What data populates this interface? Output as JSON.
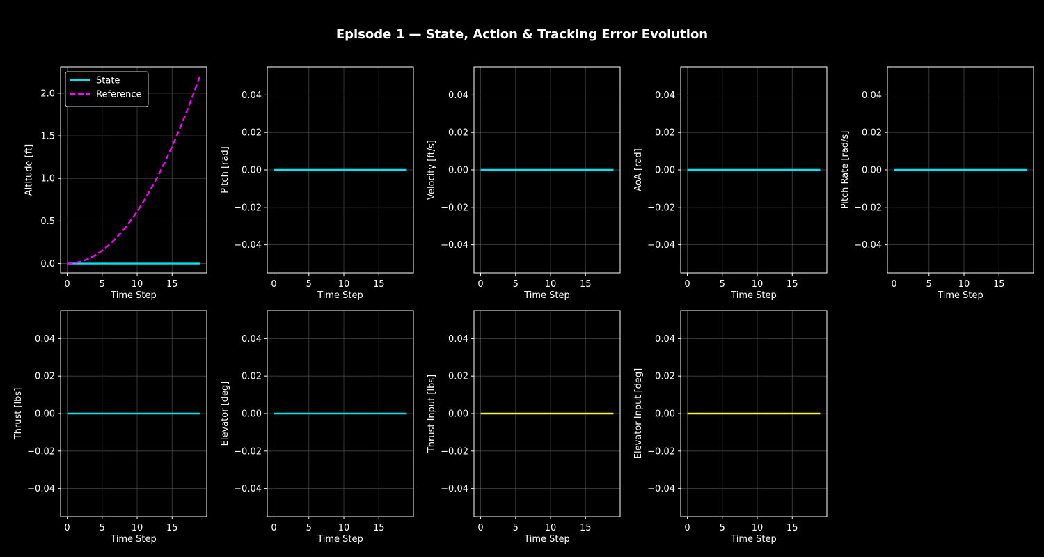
{
  "figure": {
    "title": "Episode 1 — State, Action & Tracking Error Evolution",
    "background": "#000000",
    "grid_color": "#444444",
    "text_color": "#ffffff"
  },
  "chart_data": [
    {
      "type": "line",
      "xlabel": "Time Step",
      "ylabel": "Altitude [ft]",
      "xlim": [
        -0.95,
        19.95
      ],
      "ylim": [
        -0.11,
        2.31
      ],
      "xticks": [
        0,
        5,
        10,
        15
      ],
      "yticks": [
        0.0,
        0.5,
        1.0,
        1.5,
        2.0
      ],
      "yticklabels": [
        "0.0",
        "0.5",
        "1.0",
        "1.5",
        "2.0"
      ],
      "grid": true,
      "legend": "top-left",
      "series": [
        {
          "name": "State",
          "color": "#00e5ee",
          "style": "solid",
          "x": [
            0,
            1,
            2,
            3,
            4,
            5,
            6,
            7,
            8,
            9,
            10,
            11,
            12,
            13,
            14,
            15,
            16,
            17,
            18,
            19
          ],
          "y": [
            0,
            0,
            0,
            0,
            0,
            0,
            0,
            0,
            0,
            0,
            0,
            0,
            0,
            0,
            0,
            0,
            0,
            0,
            0,
            0
          ]
        },
        {
          "name": "Reference",
          "color": "#ff00ff",
          "style": "dashed",
          "x": [
            0,
            1,
            2,
            3,
            4,
            5,
            6,
            7,
            8,
            9,
            10,
            11,
            12,
            13,
            14,
            15,
            16,
            17,
            18,
            19
          ],
          "y": [
            0.0,
            0.006,
            0.024,
            0.055,
            0.098,
            0.153,
            0.22,
            0.3,
            0.392,
            0.496,
            0.612,
            0.74,
            0.88,
            1.033,
            1.198,
            1.376,
            1.565,
            1.767,
            1.98,
            2.206
          ]
        }
      ]
    },
    {
      "type": "line",
      "xlabel": "Time Step",
      "ylabel": "Pitch [rad]",
      "xlim": [
        -0.95,
        19.95
      ],
      "ylim": [
        -0.055,
        0.055
      ],
      "xticks": [
        0,
        5,
        10,
        15
      ],
      "yticks": [
        -0.04,
        -0.02,
        0.0,
        0.02,
        0.04
      ],
      "yticklabels": [
        "−0.04",
        "−0.02",
        "0.00",
        "0.02",
        "0.04"
      ],
      "grid": true,
      "series": [
        {
          "color": "#00e5ee",
          "style": "solid",
          "x": [
            0,
            19
          ],
          "y": [
            0,
            0
          ]
        }
      ]
    },
    {
      "type": "line",
      "xlabel": "Time Step",
      "ylabel": "Velocity [ft/s]",
      "xlim": [
        -0.95,
        19.95
      ],
      "ylim": [
        -0.055,
        0.055
      ],
      "xticks": [
        0,
        5,
        10,
        15
      ],
      "yticks": [
        -0.04,
        -0.02,
        0.0,
        0.02,
        0.04
      ],
      "yticklabels": [
        "−0.04",
        "−0.02",
        "0.00",
        "0.02",
        "0.04"
      ],
      "grid": true,
      "series": [
        {
          "color": "#00e5ee",
          "style": "solid",
          "x": [
            0,
            19
          ],
          "y": [
            0,
            0
          ]
        }
      ]
    },
    {
      "type": "line",
      "xlabel": "Time Step",
      "ylabel": "AoA [rad]",
      "xlim": [
        -0.95,
        19.95
      ],
      "ylim": [
        -0.055,
        0.055
      ],
      "xticks": [
        0,
        5,
        10,
        15
      ],
      "yticks": [
        -0.04,
        -0.02,
        0.0,
        0.02,
        0.04
      ],
      "yticklabels": [
        "−0.04",
        "−0.02",
        "0.00",
        "0.02",
        "0.04"
      ],
      "grid": true,
      "series": [
        {
          "color": "#00e5ee",
          "style": "solid",
          "x": [
            0,
            19
          ],
          "y": [
            0,
            0
          ]
        }
      ]
    },
    {
      "type": "line",
      "xlabel": "Time Step",
      "ylabel": "Pitch Rate [rad/s]",
      "xlim": [
        -0.95,
        19.95
      ],
      "ylim": [
        -0.055,
        0.055
      ],
      "xticks": [
        0,
        5,
        10,
        15
      ],
      "yticks": [
        -0.04,
        -0.02,
        0.0,
        0.02,
        0.04
      ],
      "yticklabels": [
        "−0.04",
        "−0.02",
        "0.00",
        "0.02",
        "0.04"
      ],
      "grid": true,
      "series": [
        {
          "color": "#00e5ee",
          "style": "solid",
          "x": [
            0,
            19
          ],
          "y": [
            0,
            0
          ]
        }
      ]
    },
    {
      "type": "line",
      "xlabel": "Time Step",
      "ylabel": "Thrust [lbs]",
      "xlim": [
        -0.95,
        19.95
      ],
      "ylim": [
        -0.055,
        0.055
      ],
      "xticks": [
        0,
        5,
        10,
        15
      ],
      "yticks": [
        -0.04,
        -0.02,
        0.0,
        0.02,
        0.04
      ],
      "yticklabels": [
        "−0.04",
        "−0.02",
        "0.00",
        "0.02",
        "0.04"
      ],
      "grid": true,
      "series": [
        {
          "color": "#00e5ee",
          "style": "solid",
          "x": [
            0,
            19
          ],
          "y": [
            0,
            0
          ]
        }
      ]
    },
    {
      "type": "line",
      "xlabel": "Time Step",
      "ylabel": "Elevator [deg]",
      "xlim": [
        -0.95,
        19.95
      ],
      "ylim": [
        -0.055,
        0.055
      ],
      "xticks": [
        0,
        5,
        10,
        15
      ],
      "yticks": [
        -0.04,
        -0.02,
        0.0,
        0.02,
        0.04
      ],
      "yticklabels": [
        "−0.04",
        "−0.02",
        "0.00",
        "0.02",
        "0.04"
      ],
      "grid": true,
      "series": [
        {
          "color": "#00e5ee",
          "style": "solid",
          "x": [
            0,
            19
          ],
          "y": [
            0,
            0
          ]
        }
      ]
    },
    {
      "type": "line",
      "xlabel": "Time Step",
      "ylabel": "Thrust Input [lbs]",
      "xlim": [
        -0.95,
        19.95
      ],
      "ylim": [
        -0.055,
        0.055
      ],
      "xticks": [
        0,
        5,
        10,
        15
      ],
      "yticks": [
        -0.04,
        -0.02,
        0.0,
        0.02,
        0.04
      ],
      "yticklabels": [
        "−0.04",
        "−0.02",
        "0.00",
        "0.02",
        "0.04"
      ],
      "grid": true,
      "series": [
        {
          "color": "#f5f53c",
          "style": "solid",
          "x": [
            0,
            19
          ],
          "y": [
            0,
            0
          ]
        }
      ]
    },
    {
      "type": "line",
      "xlabel": "Time Step",
      "ylabel": "Elevator Input [deg]",
      "xlim": [
        -0.95,
        19.95
      ],
      "ylim": [
        -0.055,
        0.055
      ],
      "xticks": [
        0,
        5,
        10,
        15
      ],
      "yticks": [
        -0.04,
        -0.02,
        0.0,
        0.02,
        0.04
      ],
      "yticklabels": [
        "−0.04",
        "−0.02",
        "0.00",
        "0.02",
        "0.04"
      ],
      "grid": true,
      "series": [
        {
          "color": "#f5f53c",
          "style": "solid",
          "x": [
            0,
            19
          ],
          "y": [
            0,
            0
          ]
        }
      ]
    }
  ]
}
